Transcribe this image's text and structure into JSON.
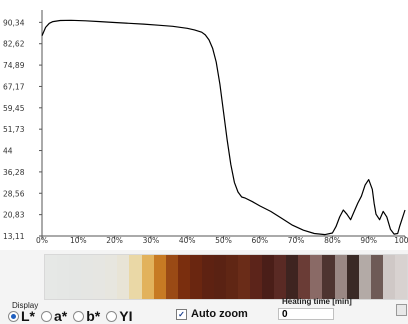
{
  "chart_data": {
    "type": "line",
    "title": "",
    "xlabel": "",
    "ylabel": "",
    "xlim": [
      0,
      100
    ],
    "ylim": [
      13.11,
      93
    ],
    "x_ticks": [
      "0%",
      "10%",
      "20%",
      "30%",
      "40%",
      "50%",
      "60%",
      "70%",
      "80%",
      "90%",
      "100%"
    ],
    "y_ticks": [
      "13,11",
      "20,83",
      "28,56",
      "36,28",
      "44",
      "51,73",
      "59,45",
      "67,17",
      "74,89",
      "82,62",
      "90,34"
    ],
    "x_tick_values": [
      0,
      10,
      20,
      30,
      40,
      50,
      60,
      70,
      80,
      90,
      100
    ],
    "y_tick_values": [
      13.11,
      20.83,
      28.56,
      36.28,
      44,
      51.73,
      59.45,
      67.17,
      74.89,
      82.62,
      90.34
    ],
    "grid": false,
    "series": [
      {
        "color": "#000000",
        "x": [
          0,
          1,
          2,
          3,
          5,
          8,
          12,
          16,
          20,
          24,
          28,
          32,
          36,
          40,
          42,
          44,
          45,
          46,
          47,
          48,
          49,
          50,
          51,
          52,
          53,
          54,
          55,
          56,
          58,
          60,
          63,
          66,
          69,
          72,
          75,
          78,
          80,
          81,
          82,
          83,
          84,
          85,
          86,
          87,
          88,
          89,
          90,
          91,
          91.5,
          92,
          93,
          94,
          95,
          96,
          97,
          98,
          98.5,
          99,
          100
        ],
        "y": [
          85.5,
          88.5,
          90.0,
          90.6,
          91.0,
          91.1,
          90.9,
          90.6,
          90.3,
          90.0,
          89.7,
          89.3,
          88.9,
          88.2,
          87.6,
          86.8,
          85.8,
          84.0,
          81.0,
          76.0,
          68.0,
          58.0,
          48.0,
          39.0,
          32.5,
          29.0,
          27.2,
          26.8,
          25.5,
          24.0,
          22.0,
          19.5,
          17.0,
          15.2,
          14.0,
          13.6,
          14.2,
          16.5,
          20.0,
          22.5,
          21.0,
          19.0,
          22.0,
          25.0,
          27.5,
          31.5,
          33.5,
          30.0,
          25.0,
          21.0,
          19.0,
          22.0,
          20.0,
          15.5,
          13.8,
          14.0,
          16.5,
          18.5,
          22.5
        ]
      }
    ]
  },
  "color_strip": [
    "#e6e8e6",
    "#e5e7e5",
    "#e4e6e4",
    "#e5e6e3",
    "#e6e6e2",
    "#e7e6df",
    "#e8e4d6",
    "#ead8a6",
    "#e2b25c",
    "#c77a23",
    "#9a4a15",
    "#7a2e0e",
    "#6a2610",
    "#5e2212",
    "#5a2213",
    "#602614",
    "#6a2c18",
    "#5c241a",
    "#4a1e18",
    "#5a2a24",
    "#3e2420",
    "#6a3c36",
    "#8a6a66",
    "#4e3430",
    "#9a8884",
    "#3a2a26",
    "#b3aaa6",
    "#6e5a56",
    "#cfc8c6",
    "#d8d2d0"
  ],
  "controls": {
    "display_label": "Display",
    "radio_options": [
      "L*",
      "a*",
      "b*",
      "YI"
    ],
    "selected_option": "L*",
    "autozoom_label": "Auto zoom",
    "autozoom_checked": true,
    "heating_time_label": "Heating time [min]",
    "heating_time_value": "0"
  }
}
